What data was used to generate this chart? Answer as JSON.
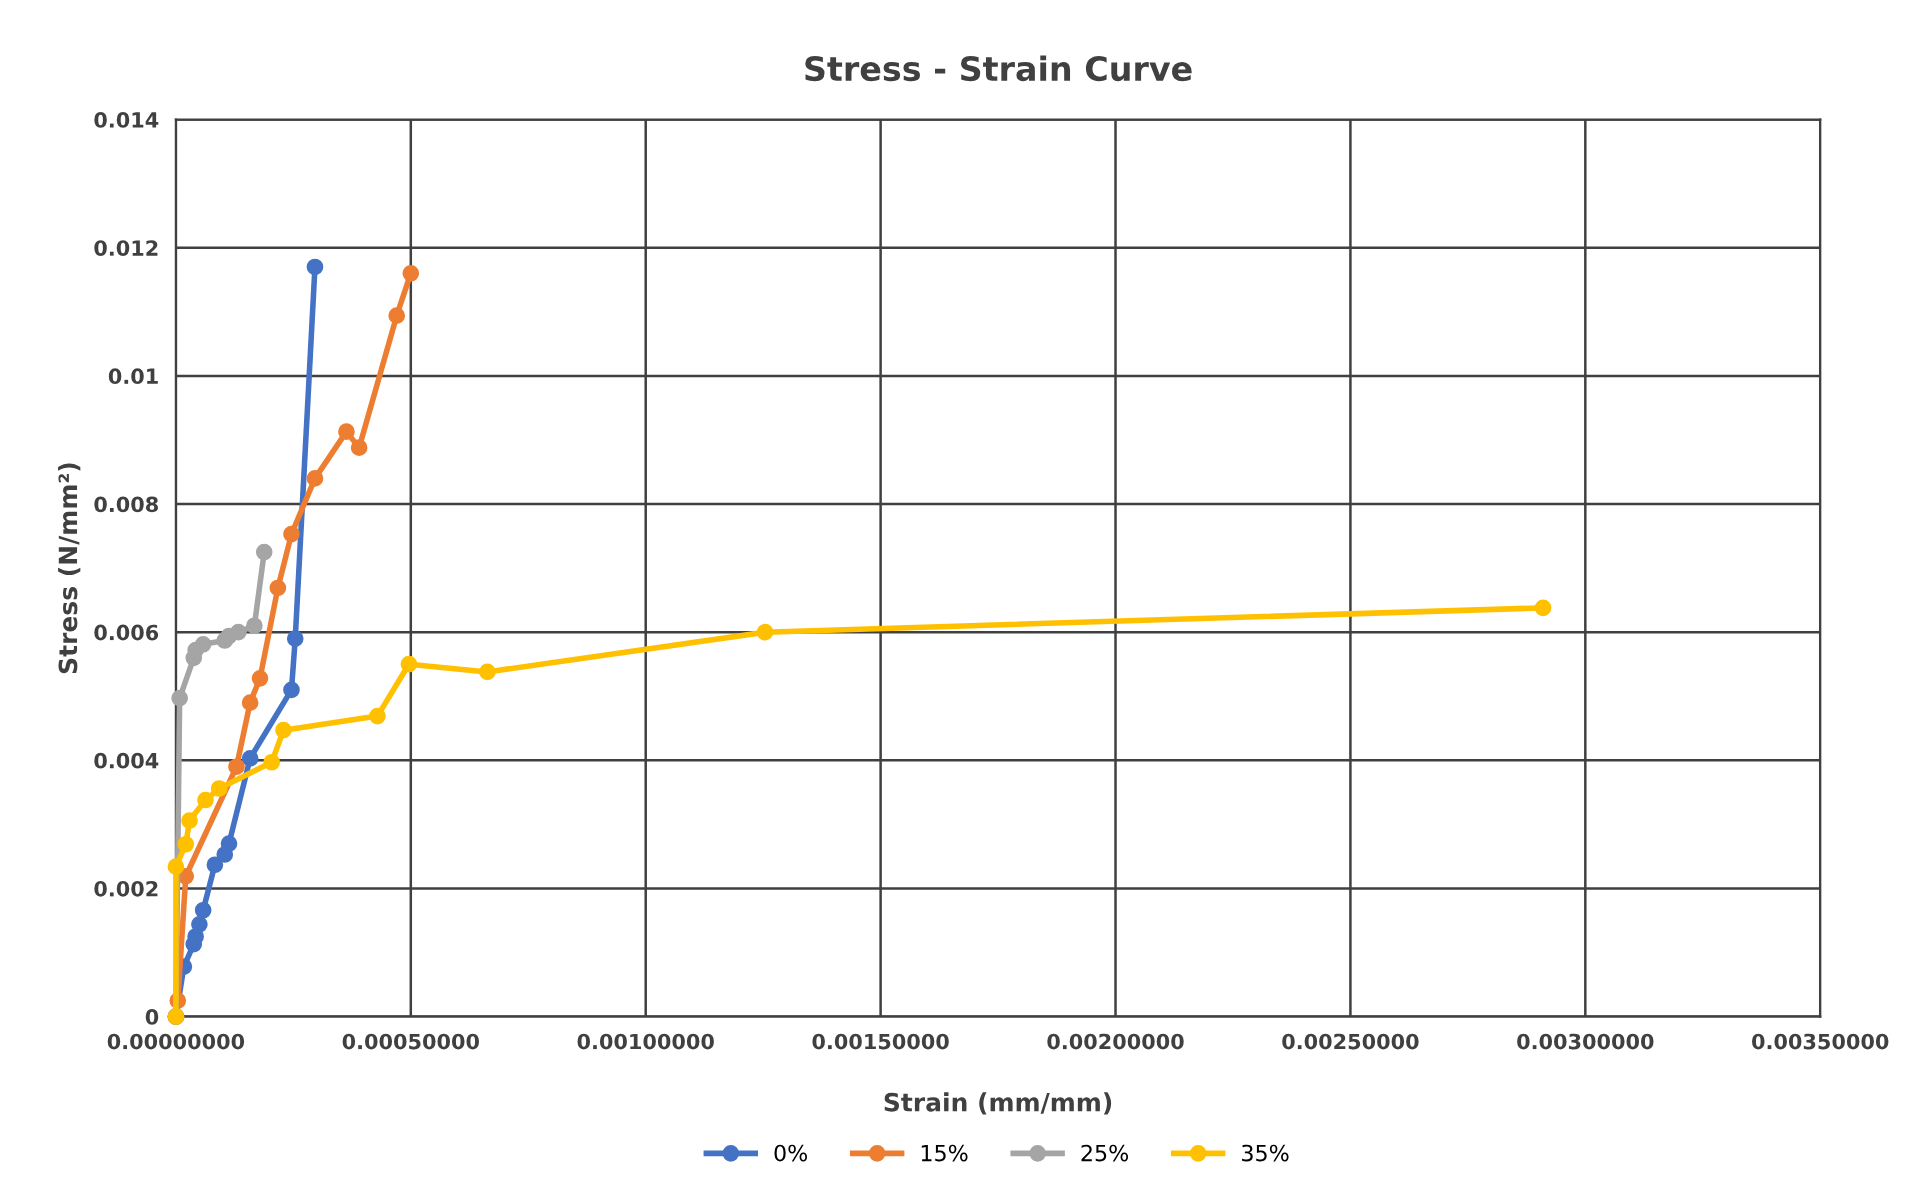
{
  "chart_data": {
    "type": "line",
    "title": "Stress - Strain Curve",
    "xlabel": "Strain (mm/mm)",
    "ylabel": "Stress (N/mm²)",
    "xlim": [
      0,
      0.0035
    ],
    "ylim": [
      0,
      0.014
    ],
    "xticks": [
      {
        "value": 0,
        "label": "0.00000000"
      },
      {
        "value": 0.0005,
        "label": "0.00050000"
      },
      {
        "value": 0.001,
        "label": "0.00100000"
      },
      {
        "value": 0.0015,
        "label": "0.00150000"
      },
      {
        "value": 0.002,
        "label": "0.00200000"
      },
      {
        "value": 0.0025,
        "label": "0.00250000"
      },
      {
        "value": 0.003,
        "label": "0.00300000"
      },
      {
        "value": 0.0035,
        "label": "0.00350000"
      }
    ],
    "yticks": [
      0,
      0.002,
      0.004,
      0.006,
      0.008,
      0.01,
      0.012,
      0.014
    ],
    "grid": true,
    "legend": "bottom",
    "marker": "circle",
    "line_style": "solid",
    "series": [
      {
        "name": "0%",
        "color": "#4472c4",
        "x": [
          0,
          1.7e-05,
          3.8e-05,
          4.2e-05,
          5e-05,
          5.8e-05,
          8.3e-05,
          0.000104,
          0.000113,
          0.000158,
          0.000246,
          0.000254,
          0.000296
        ],
        "values": [
          0,
          0.00078,
          0.00113,
          0.00125,
          0.00144,
          0.00166,
          0.00237,
          0.00253,
          0.0027,
          0.00403,
          0.0051,
          0.0059,
          0.0117
        ]
      },
      {
        "name": "15%",
        "color": "#ed7d31",
        "x": [
          0,
          4e-06,
          2.1e-05,
          0.000129,
          0.000158,
          0.000179,
          0.000217,
          0.000246,
          0.000296,
          0.000363,
          0.00039,
          0.00047,
          0.0005
        ],
        "values": [
          0,
          0.00025,
          0.00219,
          0.0039,
          0.0049,
          0.00528,
          0.00669,
          0.00753,
          0.0084,
          0.00913,
          0.00888,
          0.01094,
          0.0116
        ]
      },
      {
        "name": "25%",
        "color": "#a5a5a5",
        "x": [
          0,
          8e-06,
          3.8e-05,
          4.2e-05,
          5.8e-05,
          0.000104,
          0.000113,
          0.000133,
          0.000167,
          0.000188
        ],
        "values": [
          0,
          0.00497,
          0.0056,
          0.00572,
          0.00581,
          0.00587,
          0.00594,
          0.006,
          0.0061,
          0.00725
        ]
      },
      {
        "name": "35%",
        "color": "#ffc000",
        "x": [
          0,
          0,
          2.1e-05,
          2.9e-05,
          6.3e-05,
          9.2e-05,
          0.000204,
          0.000229,
          0.000429,
          0.000496,
          0.000663,
          0.001254,
          0.00291
        ],
        "values": [
          0,
          0.00234,
          0.00269,
          0.00306,
          0.00338,
          0.00356,
          0.00397,
          0.00447,
          0.00469,
          0.0055,
          0.00538,
          0.006,
          0.00638
        ]
      }
    ]
  }
}
